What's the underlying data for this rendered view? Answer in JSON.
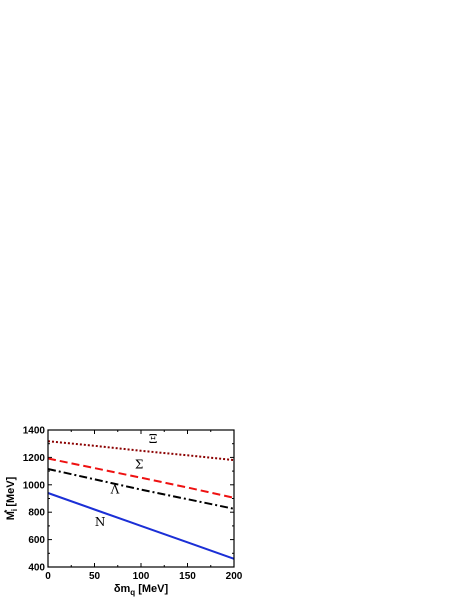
{
  "chart_data": {
    "type": "line",
    "xlabel": "δm",
    "xlabel_sub": "q",
    "xlabel_unit": " [MeV]",
    "ylabel": "M",
    "ylabel_sup": "*",
    "ylabel_sub": "i",
    "ylabel_unit": " [MeV]",
    "xlim": [
      0,
      200
    ],
    "ylim": [
      400,
      1400
    ],
    "xticks": [
      0,
      50,
      100,
      150,
      200
    ],
    "yticks": [
      400,
      600,
      800,
      1000,
      1200,
      1400
    ],
    "grid": false,
    "series": [
      {
        "name": "Ξ",
        "color": "#8b0000",
        "dash": "2,2",
        "x": [
          0,
          50,
          100,
          150,
          200
        ],
        "y": [
          1318,
          1285,
          1248,
          1215,
          1180
        ]
      },
      {
        "name": "Σ",
        "color": "#ee1111",
        "dash": "8,4",
        "x": [
          0,
          50,
          100,
          150,
          200
        ],
        "y": [
          1192,
          1122,
          1052,
          980,
          905
        ]
      },
      {
        "name": "Λ",
        "color": "#000000",
        "dash": "8,3,2,3",
        "x": [
          0,
          50,
          100,
          150,
          200
        ],
        "y": [
          1115,
          1040,
          965,
          895,
          825
        ]
      },
      {
        "name": "N",
        "color": "#1b2fd6",
        "dash": "",
        "x": [
          0,
          50,
          100,
          150,
          200
        ],
        "y": [
          940,
          820,
          700,
          580,
          460
        ]
      }
    ],
    "annotations": [
      {
        "text": "Ξ",
        "x": 113,
        "y": 1305
      },
      {
        "text": "Σ",
        "x": 98,
        "y": 1120
      },
      {
        "text": "Λ",
        "x": 72,
        "y": 935
      },
      {
        "text": "N",
        "x": 56,
        "y": 700
      }
    ]
  }
}
